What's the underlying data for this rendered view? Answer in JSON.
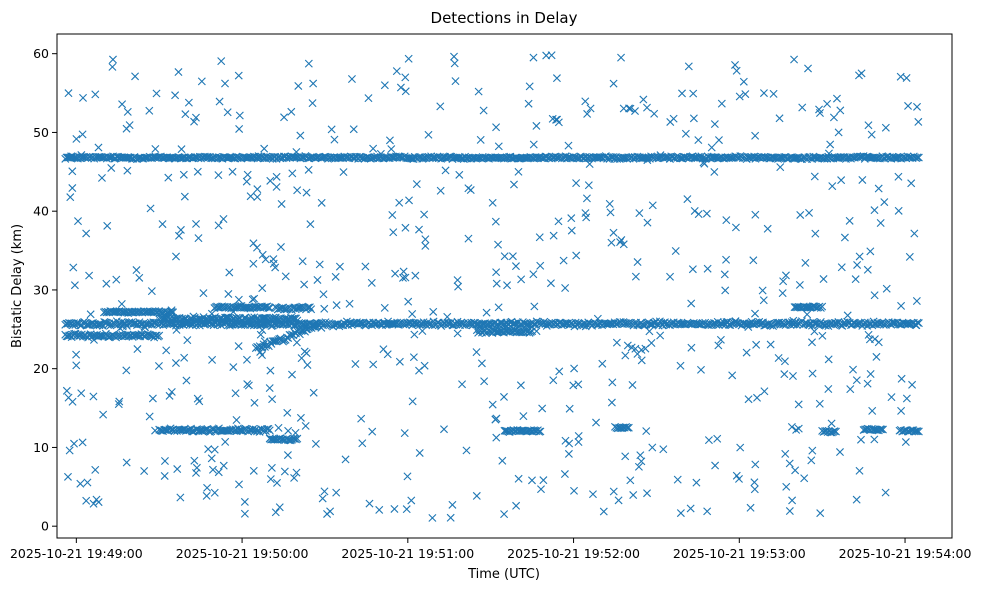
{
  "chart_data": {
    "type": "scatter",
    "title": "Detections in Delay",
    "xlabel": "Time (UTC)",
    "ylabel": "Bistatic Delay (km)",
    "marker": "x",
    "color": "#1f77b4",
    "grid": false,
    "legend": "none",
    "xlim": [
      "2025-10-21 19:48:53",
      "2025-10-21 19:54:17"
    ],
    "ylim": [
      -1.5,
      62.5
    ],
    "x_ticks": [
      "2025-10-21 19:49:00",
      "2025-10-21 19:50:00",
      "2025-10-21 19:51:00",
      "2025-10-21 19:52:00",
      "2025-10-21 19:53:00",
      "2025-10-21 19:54:00"
    ],
    "y_ticks": [
      0,
      10,
      20,
      30,
      40,
      50,
      60
    ],
    "data_time_range": [
      "2025-10-21 19:48:56",
      "2025-10-21 19:54:05"
    ],
    "dense_tracks": [
      {
        "start": "2025-10-21 19:48:56",
        "end": "2025-10-21 19:54:05",
        "delay_km": 46.8,
        "jitter_km": 0.25
      },
      {
        "start": "2025-10-21 19:48:56",
        "end": "2025-10-21 19:54:05",
        "delay_km": 25.7,
        "jitter_km": 0.4
      },
      {
        "start": "2025-10-21 19:48:56",
        "end": "2025-10-21 19:49:30",
        "delay_km": 24.2,
        "jitter_km": 0.3
      },
      {
        "start": "2025-10-21 19:49:30",
        "end": "2025-10-21 19:50:20",
        "delay_km": 26.3,
        "jitter_km": 0.4
      },
      {
        "start": "2025-10-21 19:49:10",
        "end": "2025-10-21 19:49:35",
        "delay_km": 27.2,
        "jitter_km": 0.2
      },
      {
        "start": "2025-10-21 19:49:50",
        "end": "2025-10-21 19:50:10",
        "delay_km": 27.8,
        "jitter_km": 0.2
      },
      {
        "start": "2025-10-21 19:50:12",
        "end": "2025-10-21 19:50:25",
        "delay_km": 27.7,
        "jitter_km": 0.3
      },
      {
        "start": "2025-10-21 19:50:05",
        "end": "2025-10-21 19:50:27",
        "delay_km": 22.5,
        "jitter_km": 0.5,
        "delay_end_km": 25.5
      },
      {
        "start": "2025-10-21 19:51:25",
        "end": "2025-10-21 19:51:45",
        "delay_km": 24.7,
        "jitter_km": 0.4
      },
      {
        "start": "2025-10-21 19:53:20",
        "end": "2025-10-21 19:53:30",
        "delay_km": 27.8,
        "jitter_km": 0.2
      },
      {
        "start": "2025-10-21 19:49:30",
        "end": "2025-10-21 19:50:10",
        "delay_km": 12.2,
        "jitter_km": 0.3
      },
      {
        "start": "2025-10-21 19:50:10",
        "end": "2025-10-21 19:50:20",
        "delay_km": 11.0,
        "jitter_km": 0.2
      },
      {
        "start": "2025-10-21 19:51:35",
        "end": "2025-10-21 19:51:48",
        "delay_km": 12.1,
        "jitter_km": 0.2
      },
      {
        "start": "2025-10-21 19:52:15",
        "end": "2025-10-21 19:52:20",
        "delay_km": 12.5,
        "jitter_km": 0.2
      },
      {
        "start": "2025-10-21 19:53:30",
        "end": "2025-10-21 19:53:35",
        "delay_km": 12.0,
        "jitter_km": 0.2
      },
      {
        "start": "2025-10-21 19:53:45",
        "end": "2025-10-21 19:53:52",
        "delay_km": 12.3,
        "jitter_km": 0.2
      },
      {
        "start": "2025-10-21 19:53:58",
        "end": "2025-10-21 19:54:05",
        "delay_km": 12.1,
        "jitter_km": 0.2
      }
    ],
    "scattered_points": {
      "count": 650,
      "start": "2025-10-21 19:48:56",
      "end": "2025-10-21 19:54:05",
      "delay_range_km": [
        1,
        60
      ]
    }
  }
}
